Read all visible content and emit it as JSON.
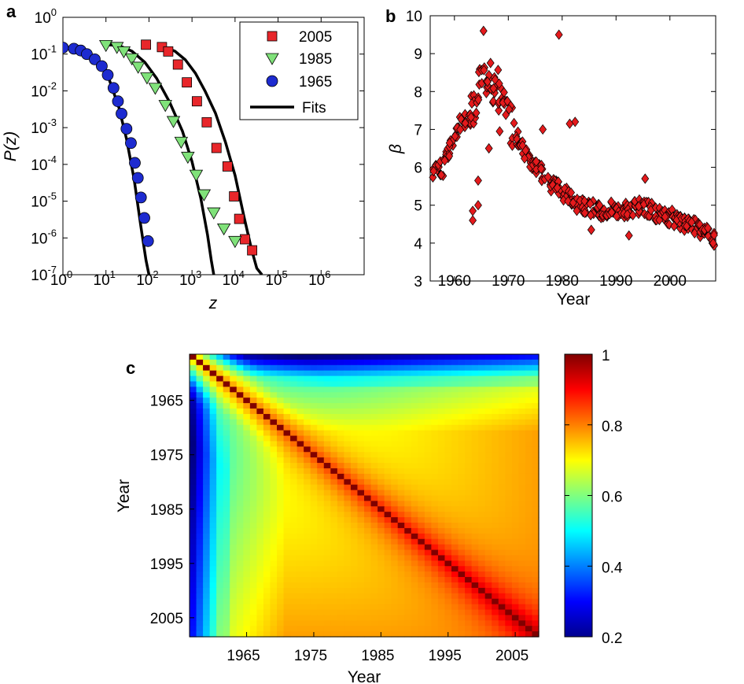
{
  "chart_data": [
    {
      "panel": "a",
      "type": "scatter",
      "scale": "log-log",
      "xlabel": "z",
      "ylabel": "P(z)",
      "xlim": [
        1,
        10000000
      ],
      "ylim": [
        1e-07,
        1
      ],
      "x_ticks": [
        {
          "value": 1,
          "base": "10",
          "exp": "0"
        },
        {
          "value": 10,
          "base": "10",
          "exp": "1"
        },
        {
          "value": 100,
          "base": "10",
          "exp": "2"
        },
        {
          "value": 1000,
          "base": "10",
          "exp": "3"
        },
        {
          "value": 10000,
          "base": "10",
          "exp": "4"
        },
        {
          "value": 100000,
          "base": "10",
          "exp": "5"
        },
        {
          "value": 1000000,
          "base": "10",
          "exp": "6"
        }
      ],
      "y_ticks": [
        {
          "value": 1,
          "base": "10",
          "exp": "0"
        },
        {
          "value": 0.1,
          "base": "10",
          "exp": "-1"
        },
        {
          "value": 0.01,
          "base": "10",
          "exp": "-2"
        },
        {
          "value": 0.001,
          "base": "10",
          "exp": "-3"
        },
        {
          "value": 0.0001,
          "base": "10",
          "exp": "-4"
        },
        {
          "value": 1e-05,
          "base": "10",
          "exp": "-5"
        },
        {
          "value": 1e-06,
          "base": "10",
          "exp": "-6"
        },
        {
          "value": 1e-07,
          "base": "10",
          "exp": "-7"
        }
      ],
      "series": [
        {
          "name": "2005",
          "marker": "square",
          "color": "#e8262a",
          "points": [
            [
              85,
              0.18
            ],
            [
              200,
              0.155
            ],
            [
              280,
              0.118
            ],
            [
              470,
              0.052
            ],
            [
              760,
              0.017
            ],
            [
              1300,
              0.0052
            ],
            [
              2200,
              0.0014
            ],
            [
              3700,
              0.00028
            ],
            [
              6700,
              8.8e-05
            ],
            [
              9500,
              1.35e-05
            ],
            [
              12500,
              3.3e-06
            ],
            [
              17000,
              9.2e-07
            ],
            [
              25000,
              4.6e-07
            ]
          ]
        },
        {
          "name": "1985",
          "marker": "triangle-down",
          "color": "#80e27a",
          "points": [
            [
              10,
              0.175
            ],
            [
              18,
              0.155
            ],
            [
              26,
              0.118
            ],
            [
              40,
              0.076
            ],
            [
              56,
              0.045
            ],
            [
              90,
              0.023
            ],
            [
              140,
              0.012
            ],
            [
              240,
              0.0041
            ],
            [
              370,
              0.0015
            ],
            [
              560,
              0.00041
            ],
            [
              800,
              0.00016
            ],
            [
              1250,
              5.2e-05
            ],
            [
              1900,
              1.52e-05
            ],
            [
              3200,
              4.9e-06
            ],
            [
              5500,
              1.8e-06
            ],
            [
              10000,
              8.2e-07
            ]
          ]
        },
        {
          "name": "1965",
          "marker": "circle",
          "color": "#1d2bd0",
          "points": [
            [
              1,
              0.15
            ],
            [
              1.8,
              0.14
            ],
            [
              2.6,
              0.125
            ],
            [
              3.6,
              0.1
            ],
            [
              5.5,
              0.072
            ],
            [
              8,
              0.047
            ],
            [
              11,
              0.027
            ],
            [
              15,
              0.012
            ],
            [
              19,
              0.0052
            ],
            [
              23,
              0.0024
            ],
            [
              30,
              0.00093
            ],
            [
              38,
              0.00038
            ],
            [
              47,
              0.00011
            ],
            [
              55,
              4.3e-05
            ],
            [
              65,
              1.26e-05
            ],
            [
              78,
              3.5e-06
            ],
            [
              95,
              8.2e-07
            ]
          ]
        }
      ],
      "fits": [
        {
          "name": "2005",
          "points": [
            [
              200,
              0.165
            ],
            [
              400,
              0.12
            ],
            [
              700,
              0.07
            ],
            [
              1200,
              0.03
            ],
            [
              2000,
              0.01
            ],
            [
              3500,
              0.0025
            ],
            [
              6000,
              0.0004
            ],
            [
              10000,
              5e-05
            ],
            [
              16000,
              4e-06
            ],
            [
              24000,
              5e-07
            ],
            [
              32000,
              1.5e-07
            ],
            [
              42000,
              1e-07
            ]
          ]
        },
        {
          "name": "1985",
          "points": [
            [
              10,
              0.18
            ],
            [
              20,
              0.17
            ],
            [
              40,
              0.12
            ],
            [
              80,
              0.06
            ],
            [
              150,
              0.022
            ],
            [
              300,
              0.005
            ],
            [
              600,
              0.0008
            ],
            [
              1000,
              0.00012
            ],
            [
              1600,
              1.2e-05
            ],
            [
              2300,
              1.2e-06
            ],
            [
              2800,
              2.5e-07
            ],
            [
              3200,
              1e-07
            ]
          ]
        },
        {
          "name": "1965",
          "points": [
            [
              1,
              0.15
            ],
            [
              2,
              0.14
            ],
            [
              4,
              0.11
            ],
            [
              7,
              0.06
            ],
            [
              12,
              0.02
            ],
            [
              20,
              0.0035
            ],
            [
              30,
              0.0005
            ],
            [
              45,
              4e-05
            ],
            [
              65,
              2e-06
            ],
            [
              85,
              2.5e-07
            ],
            [
              100,
              1e-07
            ]
          ]
        }
      ],
      "legend": {
        "position": "top-right",
        "entries": [
          {
            "label": "2005",
            "marker": "square"
          },
          {
            "label": "1985",
            "marker": "triangle-down"
          },
          {
            "label": "1965",
            "marker": "circle"
          },
          {
            "label": "Fits",
            "marker": "line"
          }
        ]
      }
    },
    {
      "panel": "b",
      "type": "scatter",
      "xlabel": "Year",
      "ylabel": "β",
      "xlim": [
        1955.5,
        2008.5
      ],
      "ylim": [
        3,
        10
      ],
      "x_ticks": [
        "1960",
        "1970",
        "1980",
        "1990",
        "2000"
      ],
      "y_ticks": [
        "3",
        "4",
        "5",
        "6",
        "7",
        "8",
        "9",
        "10"
      ],
      "marker": "diamond",
      "color": "#e41a1c",
      "anchors": [
        [
          1956,
          5.85
        ],
        [
          1958,
          6.0
        ],
        [
          1960,
          6.9
        ],
        [
          1961,
          7.15
        ],
        [
          1962,
          7.25
        ],
        [
          1963,
          7.3
        ],
        [
          1964,
          7.9
        ],
        [
          1965,
          8.7
        ],
        [
          1966,
          8.4
        ],
        [
          1967,
          8.2
        ],
        [
          1968,
          8.1
        ],
        [
          1969,
          7.6
        ],
        [
          1970,
          7.3
        ],
        [
          1971,
          7.0
        ],
        [
          1972,
          6.7
        ],
        [
          1974,
          6.2
        ],
        [
          1976,
          5.9
        ],
        [
          1978,
          5.5
        ],
        [
          1980,
          5.35
        ],
        [
          1982,
          5.1
        ],
        [
          1984,
          5.0
        ],
        [
          1986,
          4.9
        ],
        [
          1988,
          4.85
        ],
        [
          1990,
          4.9
        ],
        [
          1992,
          4.85
        ],
        [
          1994,
          4.95
        ],
        [
          1996,
          4.9
        ],
        [
          1998,
          4.75
        ],
        [
          2000,
          4.7
        ],
        [
          2002,
          4.55
        ],
        [
          2004,
          4.45
        ],
        [
          2006,
          4.35
        ],
        [
          2008,
          4.15
        ]
      ],
      "points_per_year": 7,
      "outliers": [
        [
          1963,
          4.6
        ],
        [
          1963,
          4.85
        ],
        [
          1964,
          5.65
        ],
        [
          1964,
          5.0
        ],
        [
          1966,
          6.5
        ],
        [
          1968,
          6.95
        ],
        [
          1979,
          9.5
        ],
        [
          1976,
          7.0
        ],
        [
          1982,
          7.2
        ],
        [
          1981,
          7.15
        ],
        [
          1985,
          4.35
        ],
        [
          1992,
          4.2
        ],
        [
          1995,
          5.7
        ],
        [
          1965,
          9.6
        ]
      ]
    },
    {
      "panel": "c",
      "type": "heatmap",
      "xlabel": "Year",
      "ylabel": "Year",
      "year_start": 1957,
      "year_end": 2008,
      "x_ticks": [
        "1965",
        "1975",
        "1985",
        "1995",
        "2005"
      ],
      "y_ticks": [
        "1965",
        "1975",
        "1985",
        "1995",
        "2005"
      ],
      "tick_years": [
        1965,
        1975,
        1985,
        1995,
        2005
      ],
      "colormap": "jet",
      "colorbar": {
        "min": 0.2,
        "max": 1,
        "ticks": [
          "0.2",
          "0.4",
          "0.6",
          "0.8",
          "1"
        ],
        "tick_values": [
          0.2,
          0.4,
          0.6,
          0.8,
          1
        ]
      }
    }
  ]
}
